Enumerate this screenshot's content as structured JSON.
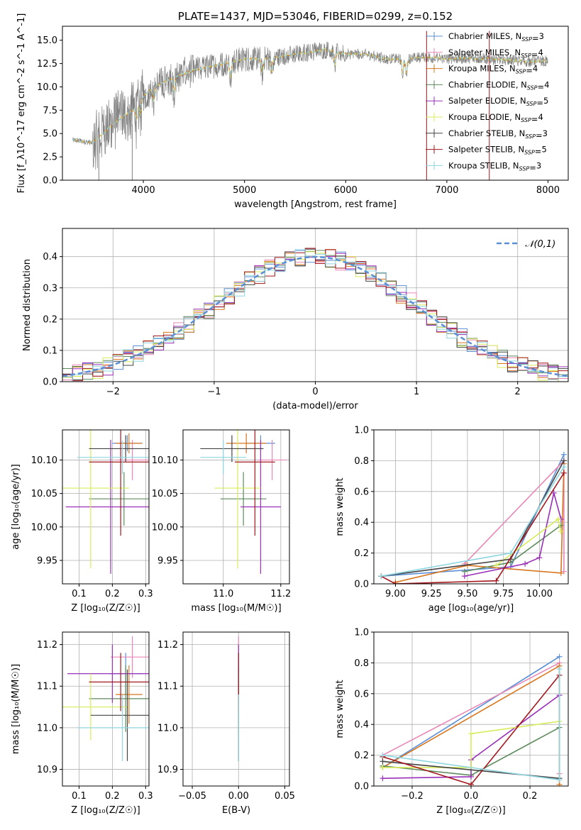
{
  "colors": {
    "Chabrier MILES": "#5b8fd6",
    "Salpeter MILES": "#e887b6",
    "Kroupa MILES": "#d8761f",
    "Chabrier ELODIE": "#5d8a5d",
    "Salpeter ELODIE": "#9a2fb8",
    "Kroupa ELODIE": "#d8ec5a",
    "Chabrier STELIB": "#444444",
    "Salpeter STELIB": "#a3171d",
    "Kroupa STELIB": "#8fd6e0",
    "data": "#808080",
    "gaussian": "#5b8fd6"
  },
  "chart_data": [
    {
      "id": "spectrum",
      "type": "line",
      "title": "PLATE=1437, MJD=53046, FIBERID=0299, z=0.152",
      "xlabel": "wavelength [Angstrom, rest frame]",
      "ylabel": "Flux [f_λ10^-17 erg cm^-2 s^-1 A^-1]",
      "xlim": [
        3200,
        8200
      ],
      "ylim": [
        0,
        16.5
      ],
      "xticks": [
        4000,
        5000,
        6000,
        7000,
        8000
      ],
      "yticks": [
        0.0,
        2.5,
        5.0,
        7.5,
        10.0,
        12.5,
        15.0
      ],
      "grid": false,
      "legend_position": "top-right",
      "legend": [
        {
          "name": "Chabrier MILES",
          "nssp": "3"
        },
        {
          "name": "Salpeter MILES",
          "nssp": "4"
        },
        {
          "name": "Kroupa MILES",
          "nssp": "4"
        },
        {
          "name": "Chabrier ELODIE",
          "nssp": "4"
        },
        {
          "name": "Salpeter ELODIE",
          "nssp": "5"
        },
        {
          "name": "Kroupa ELODIE",
          "nssp": "4"
        },
        {
          "name": "Chabrier STELIB",
          "nssp": "3"
        },
        {
          "name": "Salpeter STELIB",
          "nssp": "5"
        },
        {
          "name": "Kroupa STELIB",
          "nssp": "3"
        }
      ],
      "continuum": {
        "x": [
          3300,
          3500,
          3600,
          3750,
          3900,
          4000,
          4100,
          4300,
          4500,
          4800,
          5000,
          5200,
          5500,
          5800,
          6000,
          6200,
          6400,
          6600,
          6800,
          7000,
          7200,
          7400,
          7600,
          7800,
          8000
        ],
        "y": [
          4.3,
          4.0,
          5.0,
          6.5,
          7.5,
          9.0,
          10.0,
          11.0,
          11.8,
          12.5,
          13.0,
          13.0,
          13.5,
          14.0,
          13.5,
          13.5,
          13.0,
          13.0,
          13.2,
          13.0,
          13.1,
          13.0,
          12.9,
          12.7,
          12.8
        ]
      }
    },
    {
      "id": "residuals",
      "type": "bar",
      "xlabel": "(data-model)/error",
      "ylabel": "Normed distribution",
      "xlim": [
        -2.5,
        2.5
      ],
      "ylim": [
        0,
        0.49
      ],
      "xticks": [
        -2,
        -1,
        0,
        1,
        2
      ],
      "yticks": [
        0.0,
        0.1,
        0.2,
        0.3,
        0.4
      ],
      "grid": true,
      "legend_position": "top-right",
      "legend": [
        "𝒩(0,1)"
      ],
      "bin_width": 0.1
    },
    {
      "id": "age-vs-Z",
      "type": "scatter",
      "xlabel": "Z [log₁₀(Z/Z☉)]",
      "ylabel": "age  [log₁₀(age/yr)]",
      "xlim": [
        0.05,
        0.31
      ],
      "ylim": [
        9.915,
        10.145
      ],
      "xticks": [
        0.1,
        0.2,
        0.3
      ],
      "yticks": [
        9.95,
        10.0,
        10.05,
        10.1
      ],
      "grid": true,
      "points": [
        {
          "model": "Chabrier MILES",
          "x": 0.245,
          "xerr": 0.045,
          "y": 10.125,
          "yerr": 0.012
        },
        {
          "model": "Salpeter MILES",
          "x": 0.26,
          "xerr": 0.05,
          "y": 10.1,
          "yerr": 0.03
        },
        {
          "model": "Kroupa MILES",
          "x": 0.25,
          "xerr": 0.04,
          "y": 10.125,
          "yerr": 0.015
        },
        {
          "model": "Chabrier ELODIE",
          "x": 0.235,
          "xerr": 0.105,
          "y": 10.042,
          "yerr": 0.04
        },
        {
          "model": "Salpeter ELODIE",
          "x": 0.195,
          "xerr": 0.135,
          "y": 10.03,
          "yerr": 0.1
        },
        {
          "model": "Kroupa ELODIE",
          "x": 0.135,
          "xerr": 0.115,
          "y": 10.058,
          "yerr": 0.12
        },
        {
          "model": "Chabrier STELIB",
          "x": 0.24,
          "xerr": 0.11,
          "y": 10.117,
          "yerr": 0.02
        },
        {
          "model": "Salpeter STELIB",
          "x": 0.225,
          "xerr": 0.095,
          "y": 10.097,
          "yerr": 0.11
        },
        {
          "model": "Kroupa STELIB",
          "x": 0.23,
          "xerr": 0.135,
          "y": 10.104,
          "yerr": 0.025
        }
      ]
    },
    {
      "id": "age-vs-mass",
      "type": "scatter",
      "xlabel": "mass [log₁₀(M/M☉)]",
      "ylabel": "",
      "xlim": [
        10.86,
        11.23
      ],
      "ylim": [
        9.915,
        10.145
      ],
      "xticks": [
        11.0,
        11.2
      ],
      "yticks": [
        9.95,
        10.0,
        10.05,
        10.1
      ],
      "grid": true,
      "points": [
        {
          "model": "Chabrier MILES",
          "x": 11.13,
          "xerr": 0.05,
          "y": 10.125,
          "yerr": 0.012
        },
        {
          "model": "Salpeter MILES",
          "x": 11.17,
          "xerr": 0.05,
          "y": 10.1,
          "yerr": 0.03
        },
        {
          "model": "Kroupa MILES",
          "x": 11.08,
          "xerr": 0.07,
          "y": 10.125,
          "yerr": 0.015
        },
        {
          "model": "Chabrier ELODIE",
          "x": 11.07,
          "xerr": 0.08,
          "y": 10.042,
          "yerr": 0.04
        },
        {
          "model": "Salpeter ELODIE",
          "x": 11.13,
          "xerr": 0.07,
          "y": 10.03,
          "yerr": 0.1
        },
        {
          "model": "Kroupa ELODIE",
          "x": 11.05,
          "xerr": 0.08,
          "y": 10.058,
          "yerr": 0.12
        },
        {
          "model": "Chabrier STELIB",
          "x": 11.03,
          "xerr": 0.11,
          "y": 10.117,
          "yerr": 0.02
        },
        {
          "model": "Salpeter STELIB",
          "x": 11.11,
          "xerr": 0.07,
          "y": 10.097,
          "yerr": 0.11
        },
        {
          "model": "Kroupa STELIB",
          "x": 11.0,
          "xerr": 0.08,
          "y": 10.104,
          "yerr": 0.025
        }
      ]
    },
    {
      "id": "mass-weight-vs-age",
      "type": "line",
      "xlabel": "age  [log₁₀(age/yr)]",
      "ylabel": "mass weight",
      "xlim": [
        8.85,
        10.2
      ],
      "ylim": [
        0,
        1.0
      ],
      "xticks": [
        9.0,
        9.25,
        9.5,
        9.75,
        10.0
      ],
      "yticks": [
        0.0,
        0.2,
        0.4,
        0.6,
        0.8,
        1.0
      ],
      "grid": true,
      "series": [
        {
          "model": "Chabrier MILES",
          "x": [
            8.9,
            9.8,
            10.17
          ],
          "y": [
            0.05,
            0.11,
            0.84
          ]
        },
        {
          "model": "Salpeter MILES",
          "x": [
            9.48,
            10.17,
            10.17
          ],
          "y": [
            0.13,
            0.8,
            0.08
          ]
        },
        {
          "model": "Kroupa MILES",
          "x": [
            9.0,
            9.5,
            10.15,
            10.17
          ],
          "y": [
            0.01,
            0.12,
            0.07,
            0.78
          ]
        },
        {
          "model": "Chabrier ELODIE",
          "x": [
            9.48,
            9.8,
            10.15
          ],
          "y": [
            0.08,
            0.14,
            0.38
          ]
        },
        {
          "model": "Salpeter ELODIE",
          "x": [
            9.48,
            9.9,
            10.0,
            10.1,
            10.15
          ],
          "y": [
            0.05,
            0.13,
            0.17,
            0.59,
            0.42
          ]
        },
        {
          "model": "Kroupa ELODIE",
          "x": [
            9.7,
            10.13,
            10.15
          ],
          "y": [
            0.12,
            0.42,
            0.34
          ]
        },
        {
          "model": "Chabrier STELIB",
          "x": [
            8.9,
            9.8,
            10.17
          ],
          "y": [
            0.05,
            0.16,
            0.8
          ]
        },
        {
          "model": "Salpeter STELIB",
          "x": [
            8.9,
            9.0,
            9.7,
            10.17
          ],
          "y": [
            0.05,
            0.0,
            0.02,
            0.72
          ]
        },
        {
          "model": "Kroupa STELIB",
          "x": [
            8.9,
            9.8,
            10.17
          ],
          "y": [
            0.05,
            0.2,
            0.76
          ]
        }
      ]
    },
    {
      "id": "mass-vs-Z",
      "type": "scatter",
      "xlabel": "Z [log₁₀(Z/Z☉)]",
      "ylabel": "mass [log₁₀(M/M☉)]",
      "xlim": [
        0.05,
        0.31
      ],
      "ylim": [
        10.86,
        11.23
      ],
      "xticks": [
        0.1,
        0.2,
        0.3
      ],
      "yticks": [
        10.9,
        11.0,
        11.1,
        11.2
      ],
      "grid": true,
      "points": [
        {
          "model": "Chabrier MILES",
          "x": 0.24,
          "xerr": 0.05,
          "y": 11.13,
          "yerr": 0.05
        },
        {
          "model": "Salpeter MILES",
          "x": 0.26,
          "xerr": 0.065,
          "y": 11.17,
          "yerr": 0.05
        },
        {
          "model": "Kroupa MILES",
          "x": 0.25,
          "xerr": 0.04,
          "y": 11.08,
          "yerr": 0.07
        },
        {
          "model": "Chabrier ELODIE",
          "x": 0.24,
          "xerr": 0.11,
          "y": 11.07,
          "yerr": 0.08
        },
        {
          "model": "Salpeter ELODIE",
          "x": 0.2,
          "xerr": 0.135,
          "y": 11.13,
          "yerr": 0.07
        },
        {
          "model": "Kroupa ELODIE",
          "x": 0.135,
          "xerr": 0.115,
          "y": 11.05,
          "yerr": 0.08
        },
        {
          "model": "Chabrier STELIB",
          "x": 0.245,
          "xerr": 0.11,
          "y": 11.03,
          "yerr": 0.11
        },
        {
          "model": "Salpeter STELIB",
          "x": 0.225,
          "xerr": 0.095,
          "y": 11.11,
          "yerr": 0.07
        },
        {
          "model": "Kroupa STELIB",
          "x": 0.23,
          "xerr": 0.135,
          "y": 11.0,
          "yerr": 0.08
        }
      ]
    },
    {
      "id": "mass-vs-EBV",
      "type": "scatter",
      "xlabel": "E(B-V)",
      "ylabel": "",
      "xlim": [
        -0.06,
        0.055
      ],
      "ylim": [
        10.86,
        11.23
      ],
      "xticks": [
        -0.05,
        0.0,
        0.05
      ],
      "yticks": [
        10.9,
        11.0,
        11.1,
        11.2
      ],
      "grid": true,
      "points": [
        {
          "model": "Chabrier MILES",
          "x": 0.0,
          "xerr": 0,
          "y": 11.13,
          "yerr": 0.05
        },
        {
          "model": "Salpeter MILES",
          "x": 0.0,
          "xerr": 0,
          "y": 11.17,
          "yerr": 0.05
        },
        {
          "model": "Kroupa MILES",
          "x": 0.0,
          "xerr": 0,
          "y": 11.08,
          "yerr": 0.07
        },
        {
          "model": "Chabrier ELODIE",
          "x": 0.0,
          "xerr": 0,
          "y": 11.07,
          "yerr": 0.08
        },
        {
          "model": "Salpeter ELODIE",
          "x": 0.0,
          "xerr": 0,
          "y": 11.13,
          "yerr": 0.07
        },
        {
          "model": "Kroupa ELODIE",
          "x": 0.0,
          "xerr": 0,
          "y": 11.05,
          "yerr": 0.08
        },
        {
          "model": "Chabrier STELIB",
          "x": 0.0,
          "xerr": 0,
          "y": 11.03,
          "yerr": 0.11
        },
        {
          "model": "Salpeter STELIB",
          "x": 0.0,
          "xerr": 0,
          "y": 11.11,
          "yerr": 0.07
        },
        {
          "model": "Kroupa STELIB",
          "x": 0.0,
          "xerr": 0,
          "y": 11.0,
          "yerr": 0.08
        }
      ]
    },
    {
      "id": "mass-weight-vs-Z",
      "type": "line",
      "xlabel": "Z [log₁₀(Z/Z☉)]",
      "ylabel": "mass weight",
      "xlim": [
        -0.33,
        0.33
      ],
      "ylim": [
        0,
        1.0
      ],
      "xticks": [
        -0.2,
        0.0,
        0.2
      ],
      "yticks": [
        0.0,
        0.2,
        0.4,
        0.6,
        0.8,
        1.0
      ],
      "grid": true,
      "series": [
        {
          "model": "Chabrier MILES",
          "x": [
            -0.3,
            0.3
          ],
          "y": [
            0.12,
            0.84
          ]
        },
        {
          "model": "Salpeter MILES",
          "x": [
            -0.3,
            0.3,
            0.3
          ],
          "y": [
            0.2,
            0.8,
            0.08
          ]
        },
        {
          "model": "Kroupa MILES",
          "x": [
            -0.3,
            0.3,
            0.3
          ],
          "y": [
            0.12,
            0.78,
            0.01
          ]
        },
        {
          "model": "Chabrier ELODIE",
          "x": [
            -0.3,
            0.0,
            0.3
          ],
          "y": [
            0.13,
            0.07,
            0.38
          ]
        },
        {
          "model": "Salpeter ELODIE",
          "x": [
            -0.3,
            0.0,
            0.0,
            0.3
          ],
          "y": [
            0.05,
            0.06,
            0.17,
            0.59
          ]
        },
        {
          "model": "Kroupa ELODIE",
          "x": [
            -0.3,
            0.0,
            0.0,
            0.3
          ],
          "y": [
            0.12,
            0.12,
            0.34,
            0.42
          ]
        },
        {
          "model": "Chabrier STELIB",
          "x": [
            -0.3,
            0.3
          ],
          "y": [
            0.16,
            0.05
          ]
        },
        {
          "model": "Salpeter STELIB",
          "x": [
            -0.3,
            0.0,
            0.3
          ],
          "y": [
            0.19,
            0.01,
            0.72
          ]
        },
        {
          "model": "Kroupa STELIB",
          "x": [
            -0.3,
            0.3,
            0.3
          ],
          "y": [
            0.2,
            0.04,
            0.76
          ]
        }
      ]
    }
  ]
}
